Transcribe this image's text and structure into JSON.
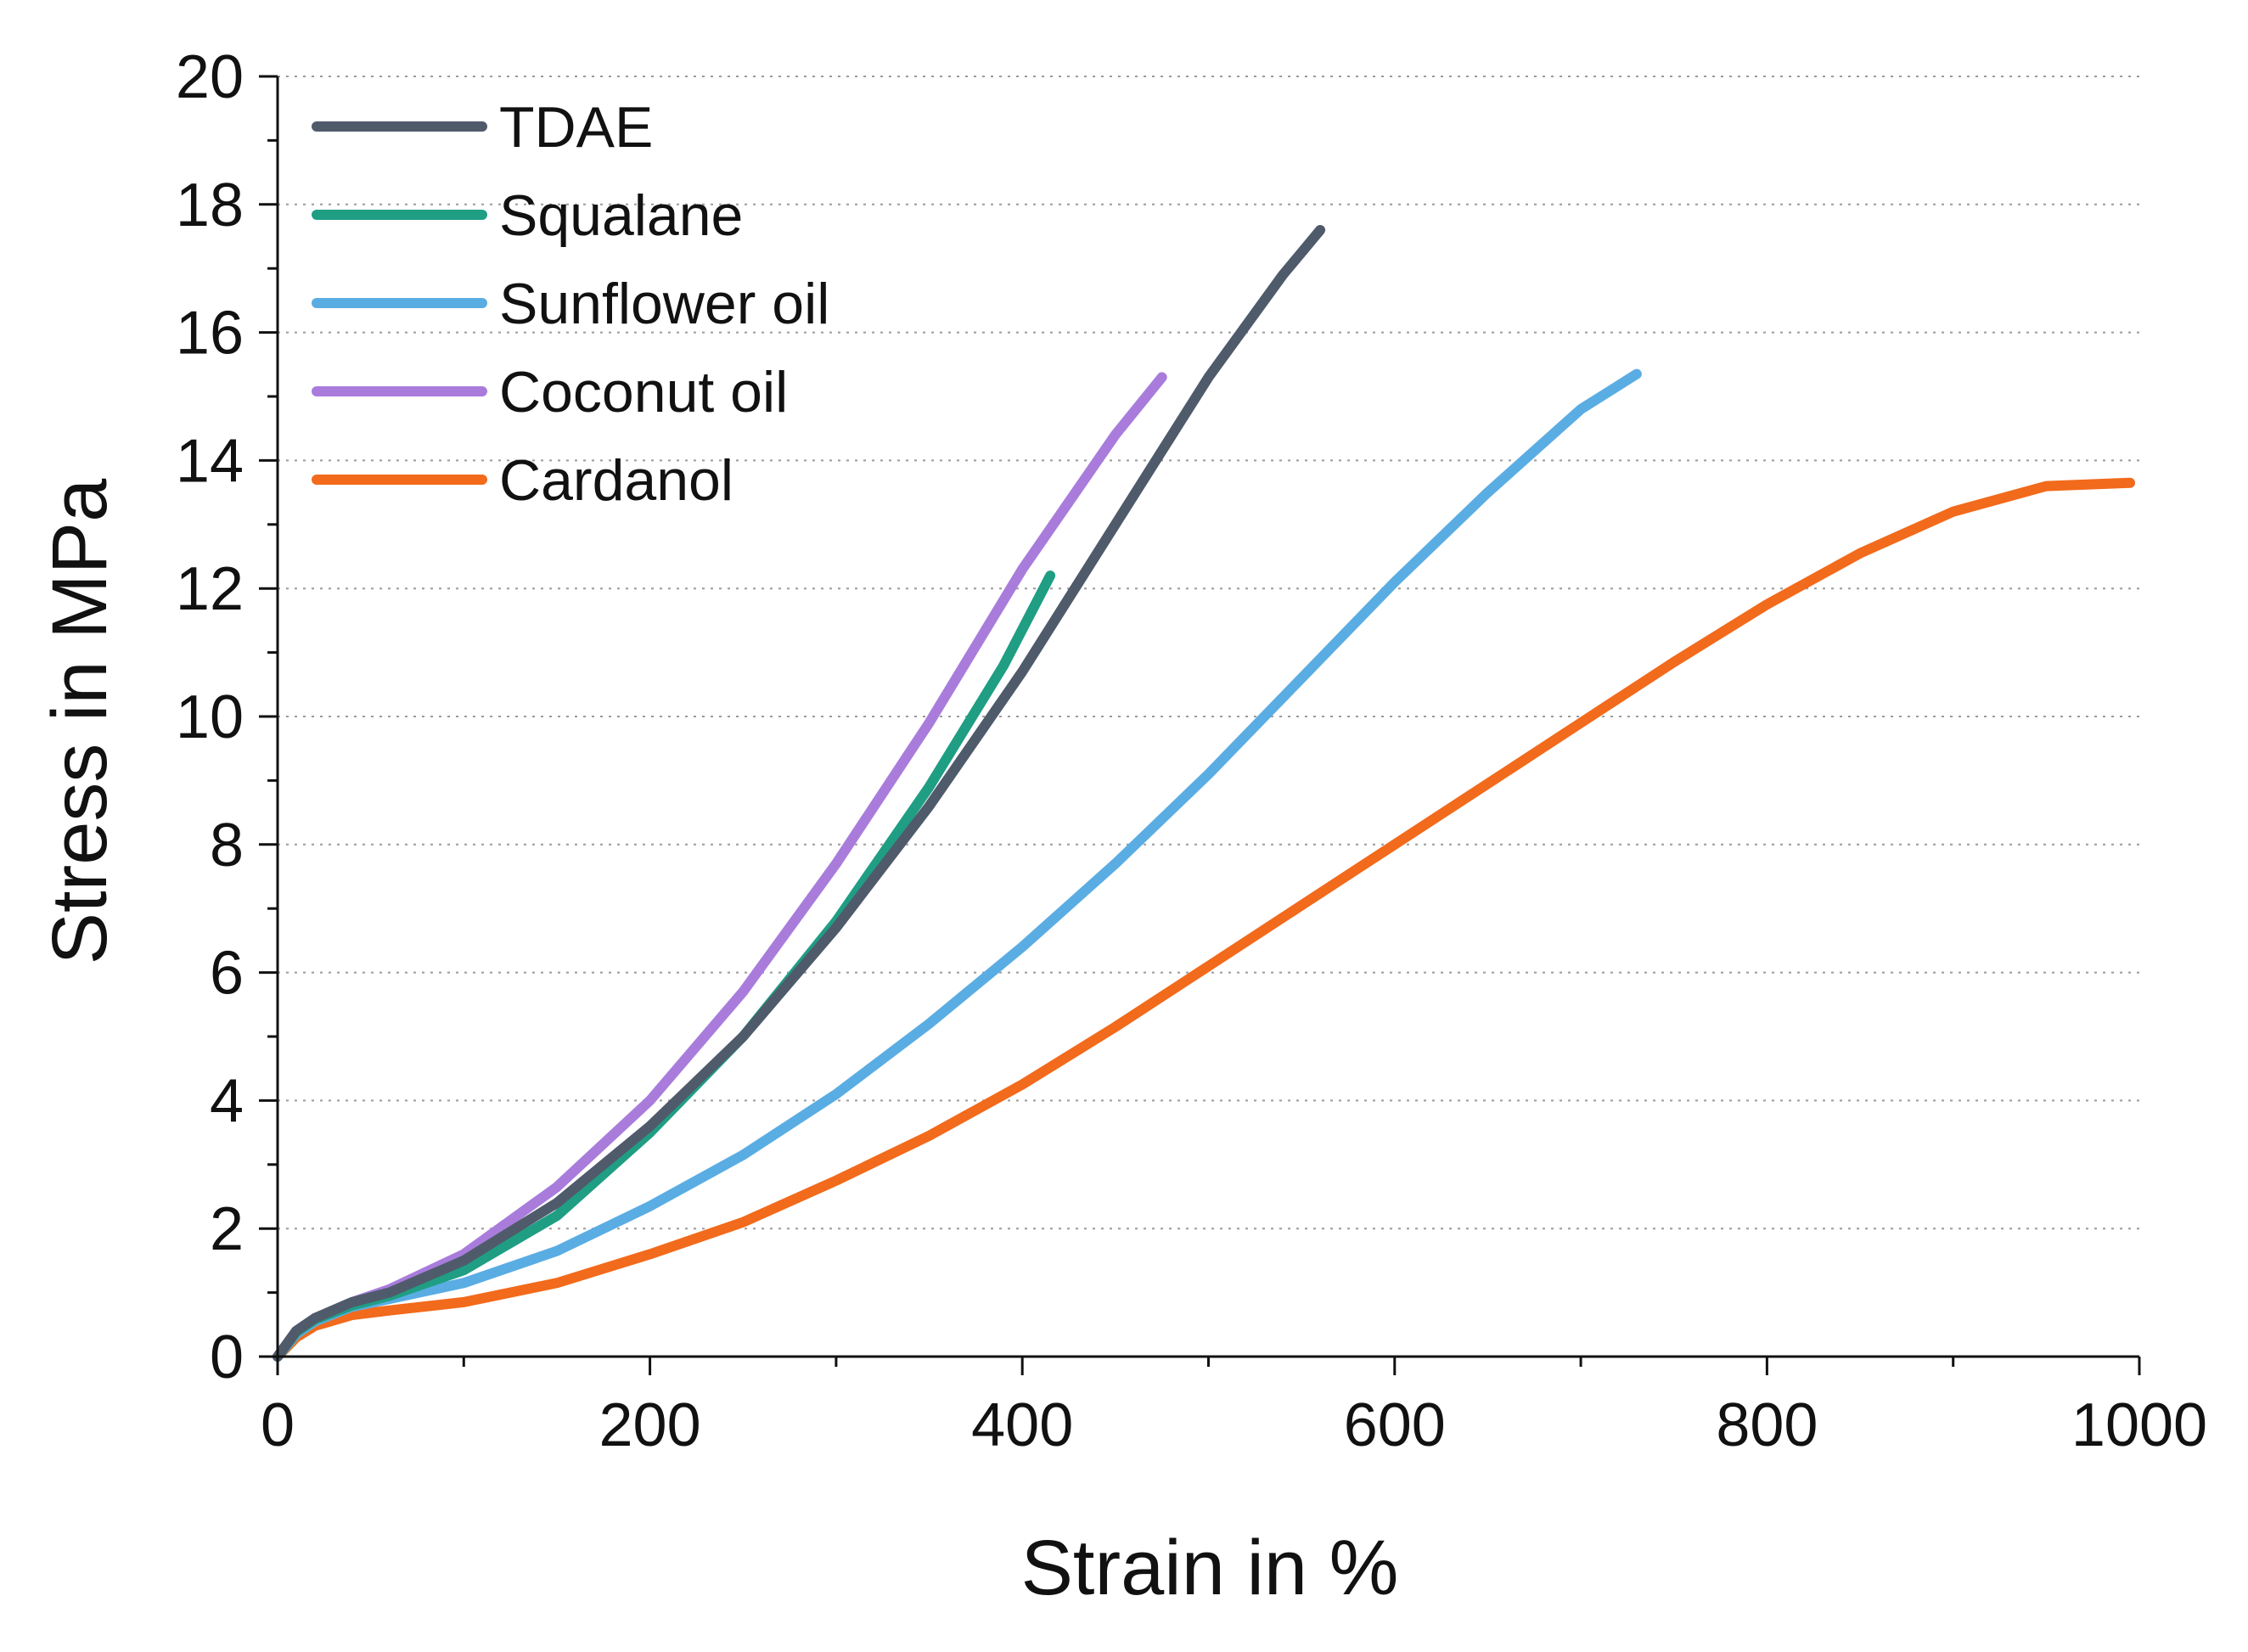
{
  "chart_data": {
    "type": "line",
    "title": "",
    "xlabel": "Strain in %",
    "ylabel": "Stress in MPa",
    "xlim": [
      0,
      1000
    ],
    "ylim": [
      0,
      20
    ],
    "xticks": [
      0,
      200,
      400,
      600,
      800,
      1000
    ],
    "yticks": [
      0,
      2,
      4,
      6,
      8,
      10,
      12,
      14,
      16,
      18,
      20
    ],
    "grid": "horizontal dotted",
    "legend_position": "top-left",
    "series": [
      {
        "name": "TDAE",
        "color": "#4f5b6b",
        "x": [
          0,
          10,
          20,
          40,
          60,
          100,
          150,
          200,
          250,
          300,
          350,
          400,
          450,
          500,
          540,
          560
        ],
        "y": [
          0,
          0.4,
          0.6,
          0.85,
          1.0,
          1.5,
          2.4,
          3.6,
          5.0,
          6.7,
          8.6,
          10.7,
          13.0,
          15.3,
          16.9,
          17.6
        ]
      },
      {
        "name": "Squalane",
        "color": "#1f9e84",
        "x": [
          0,
          10,
          20,
          40,
          60,
          100,
          150,
          200,
          250,
          300,
          350,
          390,
          415
        ],
        "y": [
          0,
          0.38,
          0.58,
          0.8,
          0.95,
          1.35,
          2.2,
          3.5,
          5.0,
          6.8,
          8.9,
          10.8,
          12.2
        ]
      },
      {
        "name": "Sunflower oil",
        "color": "#5aade3",
        "x": [
          0,
          10,
          20,
          40,
          60,
          100,
          150,
          200,
          250,
          300,
          350,
          400,
          450,
          500,
          550,
          600,
          650,
          700,
          730
        ],
        "y": [
          0,
          0.35,
          0.55,
          0.78,
          0.9,
          1.15,
          1.65,
          2.35,
          3.15,
          4.1,
          5.2,
          6.4,
          7.7,
          9.1,
          10.6,
          12.1,
          13.5,
          14.8,
          15.35
        ]
      },
      {
        "name": "Coconut oil",
        "color": "#a97cdc",
        "x": [
          0,
          10,
          20,
          40,
          60,
          100,
          150,
          200,
          250,
          300,
          350,
          400,
          450,
          475
        ],
        "y": [
          0,
          0.4,
          0.6,
          0.85,
          1.05,
          1.6,
          2.65,
          4.0,
          5.7,
          7.7,
          9.9,
          12.3,
          14.4,
          15.3
        ]
      },
      {
        "name": "Cardanol",
        "color": "#f26a1b",
        "x": [
          0,
          10,
          20,
          40,
          60,
          100,
          150,
          200,
          250,
          300,
          350,
          400,
          450,
          500,
          550,
          600,
          650,
          700,
          750,
          800,
          850,
          900,
          950,
          995
        ],
        "y": [
          0,
          0.3,
          0.48,
          0.65,
          0.72,
          0.85,
          1.15,
          1.6,
          2.1,
          2.75,
          3.45,
          4.25,
          5.15,
          6.1,
          7.05,
          8.0,
          8.95,
          9.9,
          10.85,
          11.75,
          12.55,
          13.2,
          13.6,
          13.65
        ]
      }
    ]
  }
}
